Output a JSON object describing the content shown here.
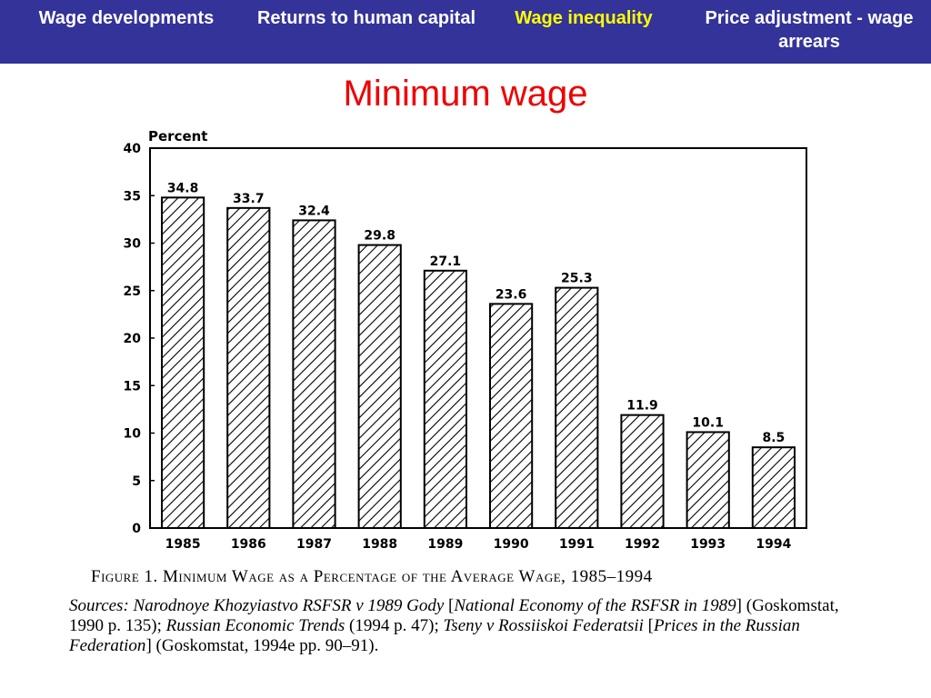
{
  "nav": {
    "items": [
      {
        "label": "Wage developments"
      },
      {
        "label": "Returns to human capital"
      },
      {
        "label": "Wage inequality",
        "active": true
      },
      {
        "label": "Price adjustment - wage arrears"
      }
    ],
    "background": "#333399",
    "active_color": "#ffff00"
  },
  "slide": {
    "title": "Minimum wage",
    "title_color": "#ee0000"
  },
  "chart_data": {
    "type": "bar",
    "categories": [
      "1985",
      "1986",
      "1987",
      "1988",
      "1989",
      "1990",
      "1991",
      "1992",
      "1993",
      "1994"
    ],
    "values": [
      34.8,
      33.7,
      32.4,
      29.8,
      27.1,
      23.6,
      25.3,
      11.9,
      10.1,
      8.5
    ],
    "data_labels": [
      "34.8",
      "33.7",
      "32.4",
      "29.8",
      "27.1",
      "23.6",
      "25.3",
      "11.9",
      "10.1",
      "8.5"
    ],
    "ylabel": "Percent",
    "xlabel": "",
    "ylim": [
      0,
      40
    ],
    "yticks": [
      "0",
      "5",
      "10",
      "15",
      "20",
      "25",
      "30",
      "35",
      "40"
    ],
    "ytick_values": [
      0,
      5,
      10,
      15,
      20,
      25,
      30,
      35,
      40
    ],
    "grid": false,
    "bar_fill": "diagonal-hatch"
  },
  "caption": {
    "text": "Figure 1. Minimum Wage as a Percentage of the Average Wage, 1985–1994"
  },
  "sources": {
    "t1": "Sources: Narodnoye Khozyiastvo RSFSR v 1989 Gody ",
    "t2": "[",
    "t3": "National Economy of the RSFSR in 1989",
    "t4": "] (Goskomstat, 1990 p. 135); ",
    "t5": "Russian Economic Trends",
    "t6": " (1994 p. 47); ",
    "t7": "Tseny v Rossiiskoi Federatsii ",
    "t8": "[",
    "t9": "Prices in the Russian Federation",
    "t10": "] (Goskomstat, 1994e pp. 90–91)."
  }
}
